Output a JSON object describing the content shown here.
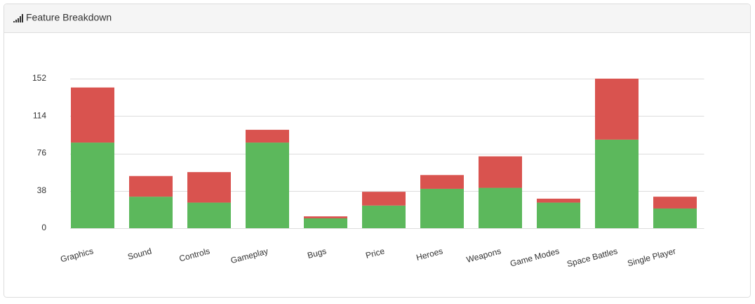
{
  "chart_data": {
    "type": "stacked_bar",
    "title": "Feature Breakdown",
    "categories": [
      "Graphics",
      "Sound",
      "Controls",
      "Gameplay",
      "Bugs",
      "Price",
      "Heroes",
      "Weapons",
      "Game Modes",
      "Space Battles",
      "Single Player"
    ],
    "series": [
      {
        "color": "#5cb85c",
        "values": [
          87,
          32,
          26,
          87,
          10,
          23,
          40,
          41,
          26,
          90,
          20
        ]
      },
      {
        "color": "#d9534f",
        "values": [
          56,
          21,
          31,
          13,
          2,
          14,
          14,
          32,
          4,
          62,
          12
        ]
      }
    ],
    "ylim": [
      0,
      152
    ],
    "yticks": [
      0,
      38,
      76,
      114,
      152
    ],
    "grid": true
  }
}
